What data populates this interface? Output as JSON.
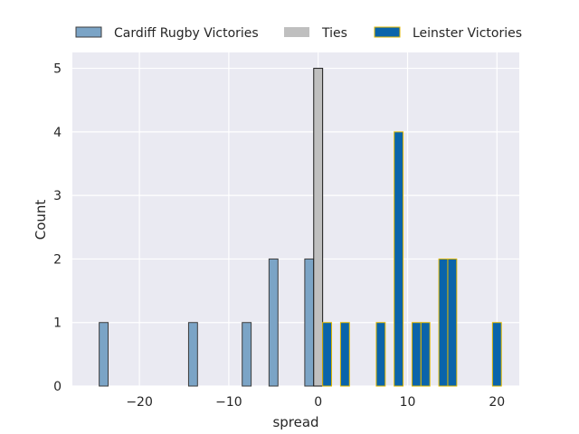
{
  "chart_data": {
    "type": "bar",
    "xlabel": "spread",
    "ylabel": "Count",
    "xlim": [
      -27.5,
      22.5
    ],
    "ylim": [
      0,
      5.25
    ],
    "xticks": [
      -20,
      -10,
      0,
      10,
      20
    ],
    "xtick_labels": [
      "−20",
      "−10",
      "0",
      "10",
      "20"
    ],
    "yticks": [
      0,
      1,
      2,
      3,
      4,
      5
    ],
    "ytick_labels": [
      "0",
      "1",
      "2",
      "3",
      "4",
      "5"
    ],
    "bin_width": 1,
    "grid": true,
    "legend_position": "top",
    "series": [
      {
        "name": "Cardiff Rugby Victories",
        "color": "#7ba4c6",
        "edge": "#3d3d3d",
        "x": [
          -24,
          -14,
          -8,
          -5,
          -1
        ],
        "values": [
          1,
          1,
          1,
          2,
          2
        ]
      },
      {
        "name": "Ties",
        "color": "#bfbfbf",
        "edge": "#1a1a1a",
        "x": [
          0
        ],
        "values": [
          5
        ]
      },
      {
        "name": "Leinster Victories",
        "color": "#0a64aa",
        "edge": "#e0b700",
        "x": [
          1,
          3,
          7,
          9,
          11,
          12,
          14,
          15,
          20
        ],
        "values": [
          1,
          1,
          1,
          4,
          1,
          1,
          2,
          2,
          1
        ]
      }
    ]
  }
}
